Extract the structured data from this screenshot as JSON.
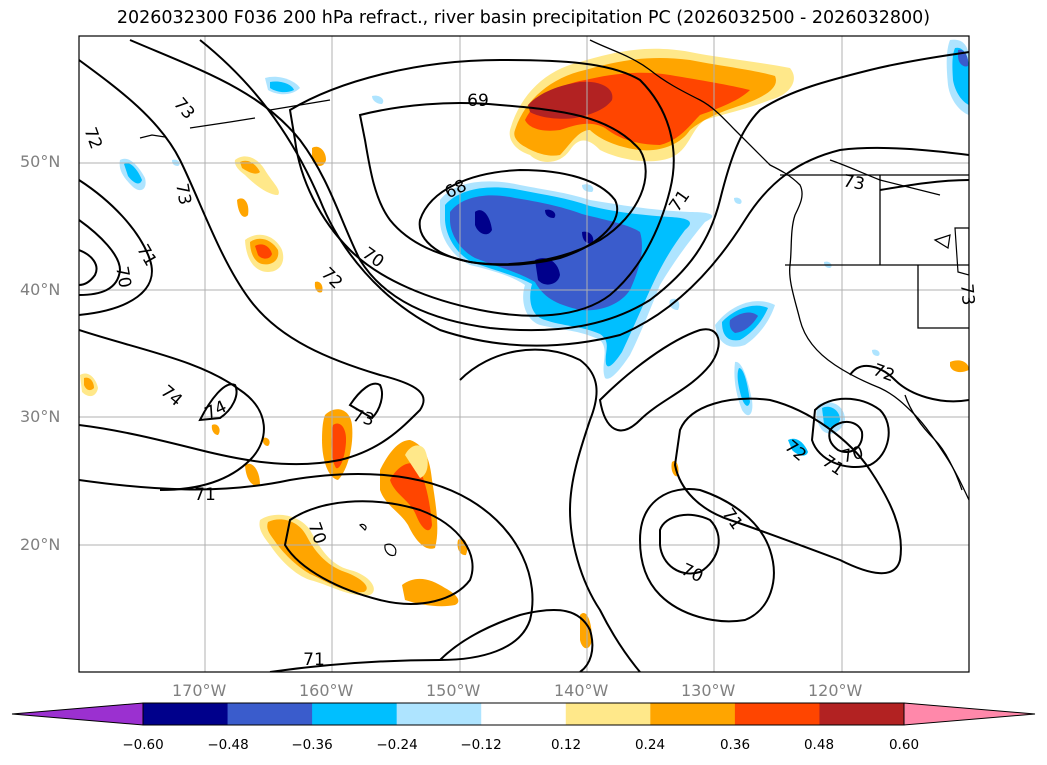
{
  "title": "2026032300 F036 200 hPa refract., river basin precipitation PC (2026032500 - 2026032800)",
  "map": {
    "lat_labels": [
      "50°N",
      "40°N",
      "30°N",
      "20°N"
    ],
    "lon_labels": [
      "170°W",
      "160°W",
      "150°W",
      "140°W",
      "130°W",
      "120°W"
    ],
    "lat_values": [
      50,
      40,
      30,
      20
    ],
    "lon_values": [
      -170,
      -160,
      -150,
      -140,
      -130,
      -120
    ],
    "contour_labels": [
      "69",
      "68",
      "70",
      "71",
      "72",
      "73",
      "73",
      "72",
      "71",
      "70",
      "74",
      "74",
      "73",
      "71",
      "70",
      "71",
      "70",
      "71",
      "72",
      "71",
      "70",
      "73",
      "72",
      "73"
    ]
  },
  "colorbar": {
    "ticks": [
      "−0.60",
      "−0.48",
      "−0.36",
      "−0.24",
      "−0.12",
      "0.12",
      "0.24",
      "0.36",
      "0.48",
      "0.60"
    ],
    "levels": [
      -0.6,
      -0.48,
      -0.36,
      -0.24,
      -0.12,
      0.12,
      0.24,
      0.36,
      0.48,
      0.6
    ],
    "colors": [
      "#9b30d0",
      "#00008b",
      "#3a5ccc",
      "#00bfff",
      "#aee4ff",
      "#ffffff",
      "#ffe88a",
      "#ffa500",
      "#ff4500",
      "#b22222",
      "#ff88aa",
      "#ff88aa"
    ],
    "under_color": "#9b30d0",
    "over_color": "#ff88aa"
  }
}
